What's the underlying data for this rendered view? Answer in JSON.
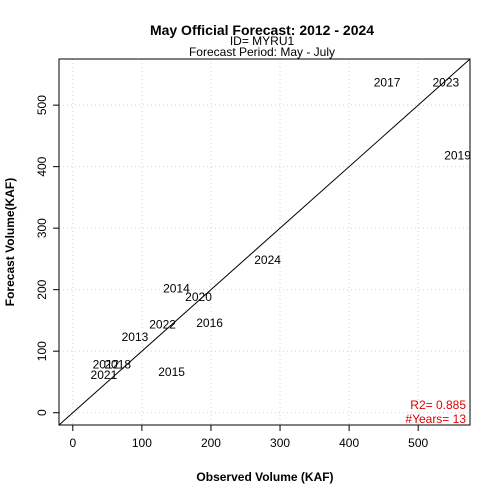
{
  "chart_data": {
    "type": "scatter",
    "title": "May Official Forecast: 2012 - 2024",
    "subtitle_id": "ID= MYRU1",
    "subtitle_period": "Forecast Period:  May - July",
    "xlabel": "Observed Volume (KAF)",
    "ylabel": "Forecast Volume(KAF)",
    "xlim": [
      -20,
      575
    ],
    "ylim": [
      -20,
      575
    ],
    "xticks": [
      0,
      100,
      200,
      300,
      400,
      500
    ],
    "yticks": [
      0,
      100,
      200,
      300,
      400,
      500
    ],
    "grid": true,
    "one_to_one_line": true,
    "points": [
      {
        "label": "2012",
        "x": 48,
        "y": 78
      },
      {
        "label": "2013",
        "x": 90,
        "y": 123
      },
      {
        "label": "2015",
        "x": 143,
        "y": 66
      },
      {
        "label": "2016",
        "x": 198,
        "y": 146
      },
      {
        "label": "2017",
        "x": 455,
        "y": 537
      },
      {
        "label": "2018",
        "x": 65,
        "y": 78
      },
      {
        "label": "2019",
        "x": 557,
        "y": 418
      },
      {
        "label": "2020",
        "x": 182,
        "y": 188
      },
      {
        "label": "2021",
        "x": 45,
        "y": 61
      },
      {
        "label": "2022",
        "x": 130,
        "y": 143
      },
      {
        "label": "2023",
        "x": 540,
        "y": 537
      },
      {
        "label": "2024",
        "x": 282,
        "y": 248
      },
      {
        "label": "2014",
        "x": 150,
        "y": 202
      }
    ],
    "stats": {
      "r2": "R2=  0.885",
      "years": "#Years=  13"
    }
  }
}
